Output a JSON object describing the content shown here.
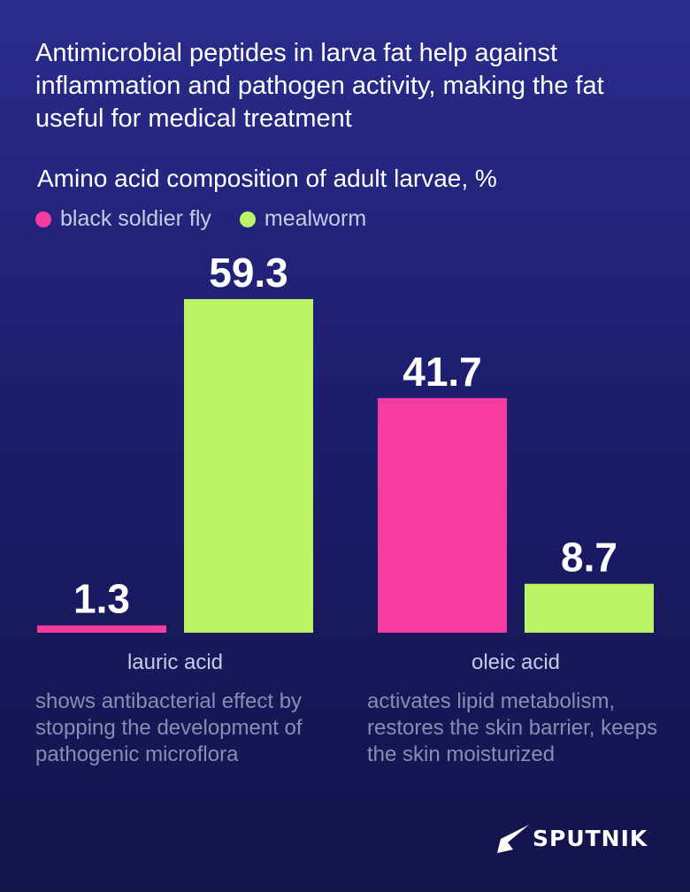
{
  "headline": "Antimicrobial peptides in larva fat help against inflammation and pathogen activity, making the fat useful for medical treatment",
  "colors": {
    "black_soldier_fly": "#f73c9f",
    "mealworm": "#bbf366"
  },
  "chart_data": {
    "type": "bar",
    "title": "Amino acid composition of adult larvae, %",
    "categories": [
      "lauric acid",
      "oleic acid"
    ],
    "series": [
      {
        "name": "black soldier fly",
        "values": [
          1.3,
          41.7
        ]
      },
      {
        "name": "mealworm",
        "values": [
          59.3,
          8.7
        ]
      }
    ],
    "value_labels": [
      [
        "1.3",
        "41.7"
      ],
      [
        "59.3",
        "8.7"
      ]
    ],
    "ylim": [
      0,
      59.3
    ],
    "grid": false,
    "legend": "top-left"
  },
  "descriptions": [
    "shows antibacterial effect by stopping the development of pathogenic microflora",
    "activates lipid metabolism, restores the skin barrier, keeps the skin moisturized"
  ],
  "logo": {
    "text": "SPUTNIK",
    "icon": "sputnik-arrow-icon"
  }
}
